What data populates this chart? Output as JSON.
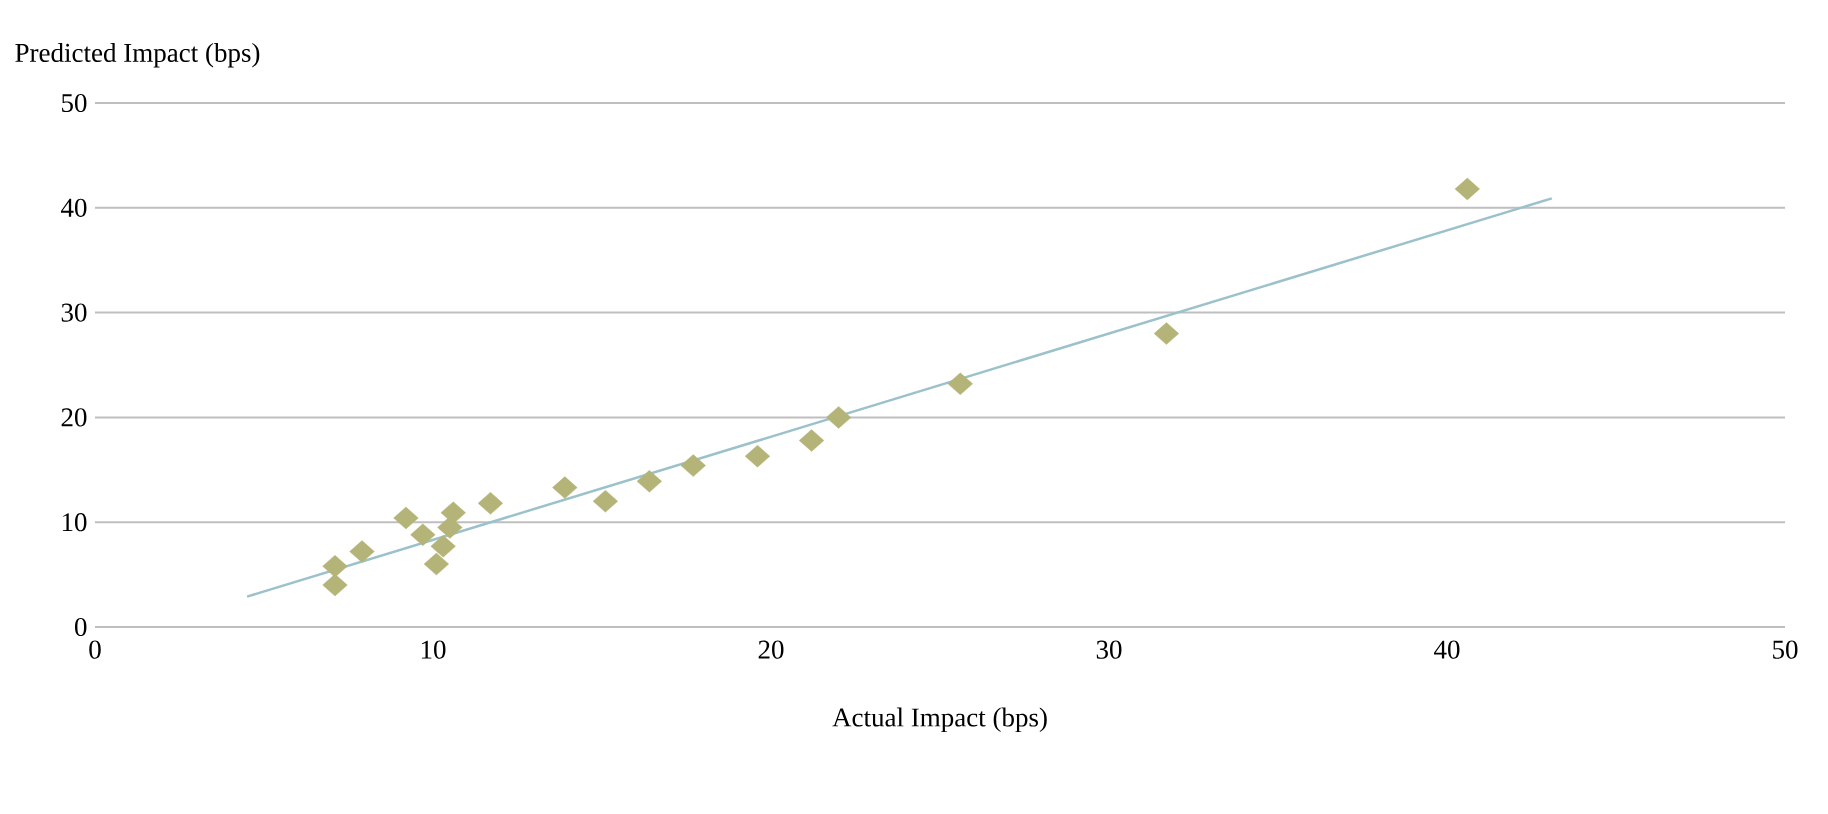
{
  "chart_data": {
    "type": "scatter",
    "xlabel": "Actual Impact (bps)",
    "ylabel": "Predicted Impact (bps)",
    "xlim": [
      0,
      50
    ],
    "ylim": [
      0,
      50
    ],
    "xticks": [
      0,
      10,
      20,
      30,
      40,
      50
    ],
    "yticks": [
      0,
      10,
      20,
      30,
      40,
      50
    ],
    "grid": "y",
    "series": [
      {
        "marker": "diamond",
        "color": "#b5b478",
        "x": [
          7.1,
          7.1,
          7.9,
          9.2,
          9.7,
          10.1,
          10.3,
          10.5,
          10.6,
          11.7,
          13.9,
          15.1,
          16.4,
          17.7,
          19.6,
          21.2,
          22.0,
          25.6,
          31.7,
          40.6
        ],
        "values": [
          5.8,
          4.0,
          7.2,
          10.4,
          8.8,
          6.0,
          7.7,
          9.5,
          10.9,
          11.8,
          13.3,
          12.0,
          13.9,
          15.4,
          16.3,
          17.8,
          20.0,
          23.2,
          28.0,
          41.8
        ]
      },
      {
        "type": "line",
        "color": "#9bc1cb",
        "x": [
          4.5,
          43.1
        ],
        "values": [
          2.9,
          40.9
        ]
      }
    ]
  }
}
